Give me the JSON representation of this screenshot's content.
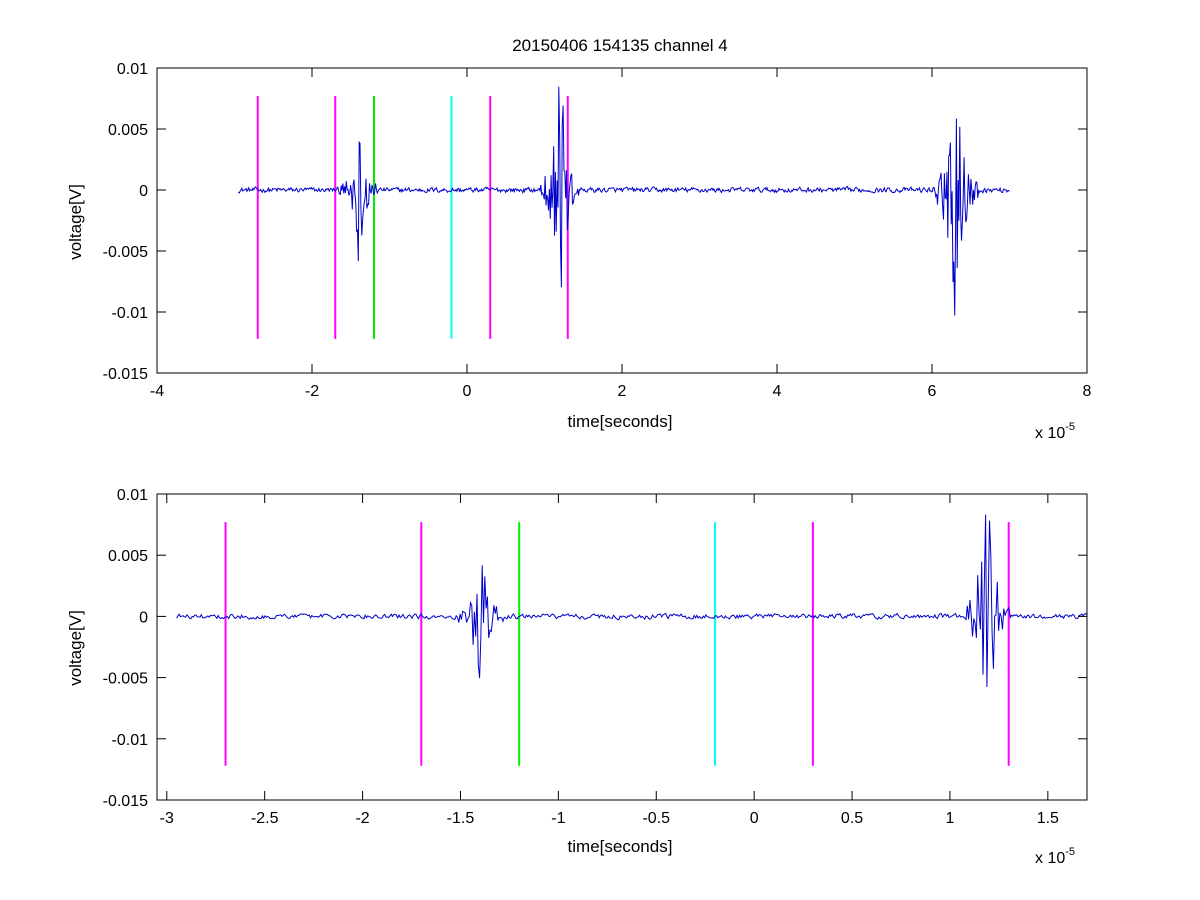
{
  "title": "20150406 154135 channel 4",
  "colors": {
    "signal": "#0000cc",
    "magenta": "#ff00ff",
    "green": "#00ee00",
    "cyan": "#00ffff",
    "axes": "#000000"
  },
  "chart_data": [
    {
      "type": "line",
      "title": "20150406 154135 channel 4",
      "xlabel": "time[seconds]",
      "ylabel": "voltage[V]",
      "x_multiplier_label": "x 10",
      "x_multiplier_exp": "-5",
      "xlim": [
        -4,
        8
      ],
      "ylim": [
        -0.015,
        0.01
      ],
      "xticks": [
        -4,
        -2,
        0,
        2,
        4,
        6,
        8
      ],
      "xtick_labels": [
        "-4",
        "-2",
        "0",
        "2",
        "4",
        "6",
        "8"
      ],
      "yticks": [
        -0.015,
        -0.01,
        -0.005,
        0,
        0.005,
        0.01
      ],
      "ytick_labels": [
        "-0.015",
        "-0.01",
        "-0.005",
        "0",
        "0.005",
        "0.01"
      ],
      "grid": false,
      "series": [
        {
          "color": "#0000cc",
          "x_range": [
            -2.95,
            7.0
          ],
          "baseline": 0.0,
          "noise": 0.0004,
          "bursts": [
            {
              "t": -1.4,
              "amp": 0.006,
              "width": 0.25
            },
            {
              "t": 1.2,
              "amp": 0.011,
              "width": 0.25
            },
            {
              "t": 6.3,
              "amp": 0.011,
              "width": 0.3
            }
          ]
        }
      ],
      "markers": [
        {
          "x": -2.7,
          "y_range": [
            -0.0122,
            0.0077
          ],
          "color": "#ff00ff"
        },
        {
          "x": -1.7,
          "y_range": [
            -0.0122,
            0.0077
          ],
          "color": "#ff00ff"
        },
        {
          "x": -1.2,
          "y_range": [
            -0.0122,
            0.0077
          ],
          "color": "#00ee00"
        },
        {
          "x": -0.2,
          "y_range": [
            -0.0122,
            0.0077
          ],
          "color": "#00ffff"
        },
        {
          "x": 0.3,
          "y_range": [
            -0.0122,
            0.0077
          ],
          "color": "#ff00ff"
        },
        {
          "x": 1.3,
          "y_range": [
            -0.0122,
            0.0077
          ],
          "color": "#ff00ff"
        }
      ]
    },
    {
      "type": "line",
      "title": "",
      "xlabel": "time[seconds]",
      "ylabel": "voltage[V]",
      "x_multiplier_label": "x 10",
      "x_multiplier_exp": "-5",
      "xlim": [
        -3.05,
        1.7
      ],
      "ylim": [
        -0.015,
        0.01
      ],
      "xticks": [
        -3,
        -2.5,
        -2,
        -1.5,
        -1,
        -0.5,
        0,
        0.5,
        1,
        1.5
      ],
      "xtick_labels": [
        "-3",
        "-2.5",
        "-2",
        "-1.5",
        "-1",
        "-0.5",
        "0",
        "0.5",
        "1",
        "1.5"
      ],
      "yticks": [
        -0.015,
        -0.01,
        -0.005,
        0,
        0.005,
        0.01
      ],
      "ytick_labels": [
        "-0.015",
        "-0.01",
        "-0.005",
        "0",
        "0.005",
        "0.01"
      ],
      "grid": false,
      "series": [
        {
          "color": "#0000cc",
          "x_range": [
            -2.95,
            1.7
          ],
          "baseline": 0.0,
          "noise": 0.0004,
          "bursts": [
            {
              "t": -1.4,
              "amp": 0.006,
              "width": 0.12
            },
            {
              "t": 1.19,
              "amp": 0.011,
              "width": 0.12
            }
          ]
        }
      ],
      "markers": [
        {
          "x": -2.7,
          "y_range": [
            -0.0122,
            0.0077
          ],
          "color": "#ff00ff"
        },
        {
          "x": -1.7,
          "y_range": [
            -0.0122,
            0.0077
          ],
          "color": "#ff00ff"
        },
        {
          "x": -1.2,
          "y_range": [
            -0.0122,
            0.0077
          ],
          "color": "#00ee00"
        },
        {
          "x": -0.2,
          "y_range": [
            -0.0122,
            0.0077
          ],
          "color": "#00ffff"
        },
        {
          "x": 0.3,
          "y_range": [
            -0.0122,
            0.0077
          ],
          "color": "#ff00ff"
        },
        {
          "x": 1.3,
          "y_range": [
            -0.0122,
            0.0077
          ],
          "color": "#ff00ff"
        }
      ]
    }
  ]
}
